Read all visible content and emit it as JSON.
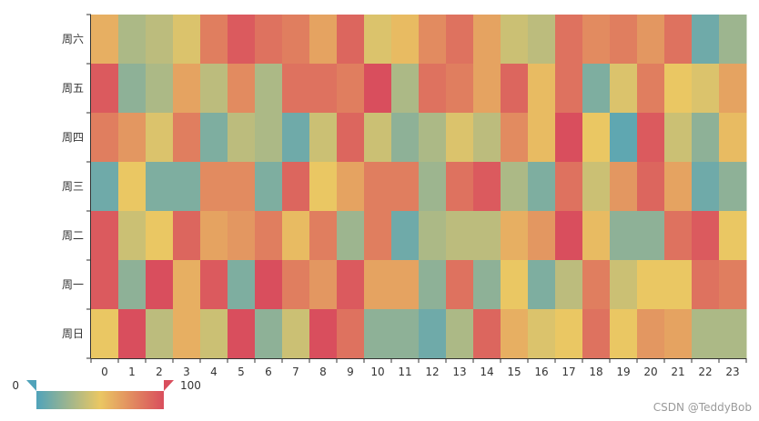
{
  "chart_data": {
    "type": "heatmap",
    "x_categories": [
      "0",
      "1",
      "2",
      "3",
      "4",
      "5",
      "6",
      "7",
      "8",
      "9",
      "10",
      "11",
      "12",
      "13",
      "14",
      "15",
      "16",
      "17",
      "18",
      "19",
      "20",
      "21",
      "22",
      "23"
    ],
    "y_categories_top_to_bottom": [
      "周六",
      "周五",
      "周四",
      "周三",
      "周二",
      "周一",
      "周日"
    ],
    "values": [
      [
        60,
        30,
        35,
        45,
        80,
        95,
        85,
        80,
        65,
        90,
        45,
        55,
        75,
        85,
        65,
        40,
        35,
        85,
        75,
        80,
        70,
        85,
        10,
        25
      ],
      [
        95,
        20,
        30,
        65,
        35,
        75,
        30,
        85,
        85,
        80,
        100,
        30,
        85,
        80,
        65,
        90,
        55,
        85,
        15,
        45,
        80,
        50,
        45,
        65
      ],
      [
        80,
        70,
        45,
        80,
        15,
        35,
        30,
        10,
        40,
        90,
        40,
        20,
        30,
        45,
        35,
        75,
        55,
        100,
        50,
        5,
        95,
        40,
        20,
        55
      ],
      [
        10,
        50,
        15,
        15,
        75,
        75,
        15,
        90,
        50,
        65,
        80,
        80,
        25,
        85,
        95,
        30,
        15,
        85,
        40,
        70,
        90,
        65,
        10,
        20
      ],
      [
        95,
        40,
        50,
        90,
        65,
        70,
        80,
        55,
        80,
        25,
        80,
        10,
        30,
        35,
        35,
        60,
        70,
        100,
        55,
        20,
        20,
        85,
        95,
        50
      ],
      [
        95,
        20,
        100,
        60,
        95,
        15,
        100,
        80,
        70,
        95,
        65,
        65,
        20,
        85,
        20,
        50,
        15,
        35,
        80,
        40,
        50,
        50,
        85,
        80
      ],
      [
        50,
        100,
        35,
        60,
        40,
        100,
        20,
        40,
        100,
        85,
        20,
        20,
        10,
        30,
        90,
        60,
        45,
        50,
        85,
        50,
        70,
        65,
        30,
        30
      ]
    ],
    "visual_map": {
      "min": 0,
      "max": 100,
      "min_label": "0",
      "max_label": "100",
      "colors": [
        "#50a3ba",
        "#eac763",
        "#d94e5d"
      ]
    }
  },
  "watermark": "CSDN @TeddyBob"
}
